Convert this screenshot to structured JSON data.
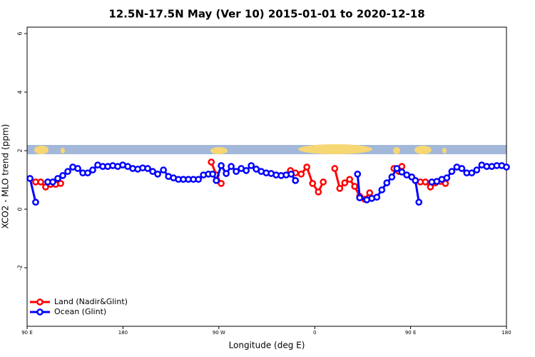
{
  "chart_data": {
    "type": "line",
    "title": "12.5N-17.5N May (Ver 10)   2015-01-01 to 2020-12-18",
    "x_label": "Longitude (deg E)",
    "y_label": "XCO2 - MLO trend (ppm)",
    "xlim": [
      90,
      540
    ],
    "ylim": [
      -4.0,
      6.22
    ],
    "xticks": [
      {
        "value": 90,
        "label": "90 E"
      },
      {
        "value": 180,
        "label": "180"
      },
      {
        "value": 270,
        "label": "90 W"
      },
      {
        "value": 360,
        "label": "0"
      },
      {
        "value": 450,
        "label": "90 E"
      },
      {
        "value": 540,
        "label": "180"
      }
    ],
    "yticks": [
      -2,
      0,
      2,
      4,
      6
    ],
    "legend": "bottomleft",
    "series": [
      {
        "name": "Land (Nadir&Glint)",
        "color": "#ff0000",
        "x": [
          98.0,
          102.8,
          107.4,
          112.1,
          116.8,
          121.5,
          null,
          262.9,
          267.6,
          272.2,
          null,
          337.2,
          341.9,
          347.3,
          352.6,
          358.0,
          363.4,
          368.0,
          null,
          378.8,
          383.5,
          388.2,
          392.8,
          397.5,
          402.2,
          406.9,
          411.6,
          null,
          434.4,
          439.1,
          441.8,
          null,
          459.2,
          463.9,
          468.6,
          473.3,
          478.0,
          482.7
        ],
        "values": [
          0.93,
          0.93,
          0.76,
          0.85,
          0.85,
          0.88,
          null,
          1.61,
          1.17,
          0.88,
          null,
          1.32,
          1.24,
          1.2,
          1.44,
          0.88,
          0.59,
          0.93,
          null,
          1.39,
          0.71,
          0.9,
          1.02,
          0.78,
          0.44,
          0.34,
          0.56,
          null,
          1.39,
          1.29,
          1.46,
          null,
          0.93,
          0.93,
          0.76,
          0.9,
          0.95,
          0.88
        ]
      },
      {
        "name": "Ocean (Glint)",
        "color": "#0000ff",
        "x": [
          92.7,
          98.0,
          null,
          109.4,
          114.1,
          118.8,
          123.5,
          128.2,
          132.9,
          137.6,
          142.3,
          146.9,
          151.6,
          156.3,
          161.0,
          165.7,
          170.4,
          175.1,
          179.8,
          184.5,
          189.2,
          193.9,
          198.5,
          203.2,
          207.9,
          212.6,
          218.0,
          222.7,
          227.4,
          232.0,
          236.7,
          241.4,
          246.1,
          250.8,
          255.5,
          260.2,
          264.2,
          267.6,
          272.2,
          276.9,
          281.6,
          286.3,
          291.0,
          295.7,
          300.4,
          305.1,
          309.8,
          314.5,
          319.1,
          323.8,
          328.5,
          333.2,
          337.9,
          341.9,
          null,
          400.2,
          402.2,
          408.9,
          413.6,
          418.3,
          423.0,
          427.7,
          432.4,
          437.1,
          441.8,
          446.4,
          451.1,
          454.5,
          457.8,
          null,
          469.9,
          474.6,
          479.3,
          484.0,
          488.7,
          493.4,
          498.1,
          502.7,
          507.4,
          512.1,
          516.8,
          521.5,
          526.2,
          530.9,
          535.6,
          540
        ],
        "values": [
          1.05,
          0.24,
          null,
          0.93,
          0.93,
          1.05,
          1.15,
          1.29,
          1.44,
          1.39,
          1.24,
          1.24,
          1.34,
          1.51,
          1.46,
          1.46,
          1.49,
          1.46,
          1.51,
          1.46,
          1.39,
          1.37,
          1.41,
          1.39,
          1.29,
          1.2,
          1.34,
          1.12,
          1.07,
          1.02,
          1.02,
          1.02,
          1.02,
          1.02,
          1.17,
          1.2,
          1.2,
          0.98,
          1.49,
          1.22,
          1.46,
          1.29,
          1.39,
          1.32,
          1.49,
          1.37,
          1.29,
          1.24,
          1.22,
          1.17,
          1.15,
          1.17,
          1.2,
          0.98,
          null,
          1.2,
          0.39,
          0.32,
          0.37,
          0.41,
          0.66,
          0.9,
          1.1,
          1.39,
          1.27,
          1.17,
          1.1,
          0.98,
          0.24,
          null,
          0.93,
          0.95,
          1.02,
          1.07,
          1.29,
          1.44,
          1.39,
          1.24,
          1.24,
          1.34,
          1.51,
          1.46,
          1.46,
          1.49,
          1.49,
          1.44
        ]
      }
    ]
  }
}
